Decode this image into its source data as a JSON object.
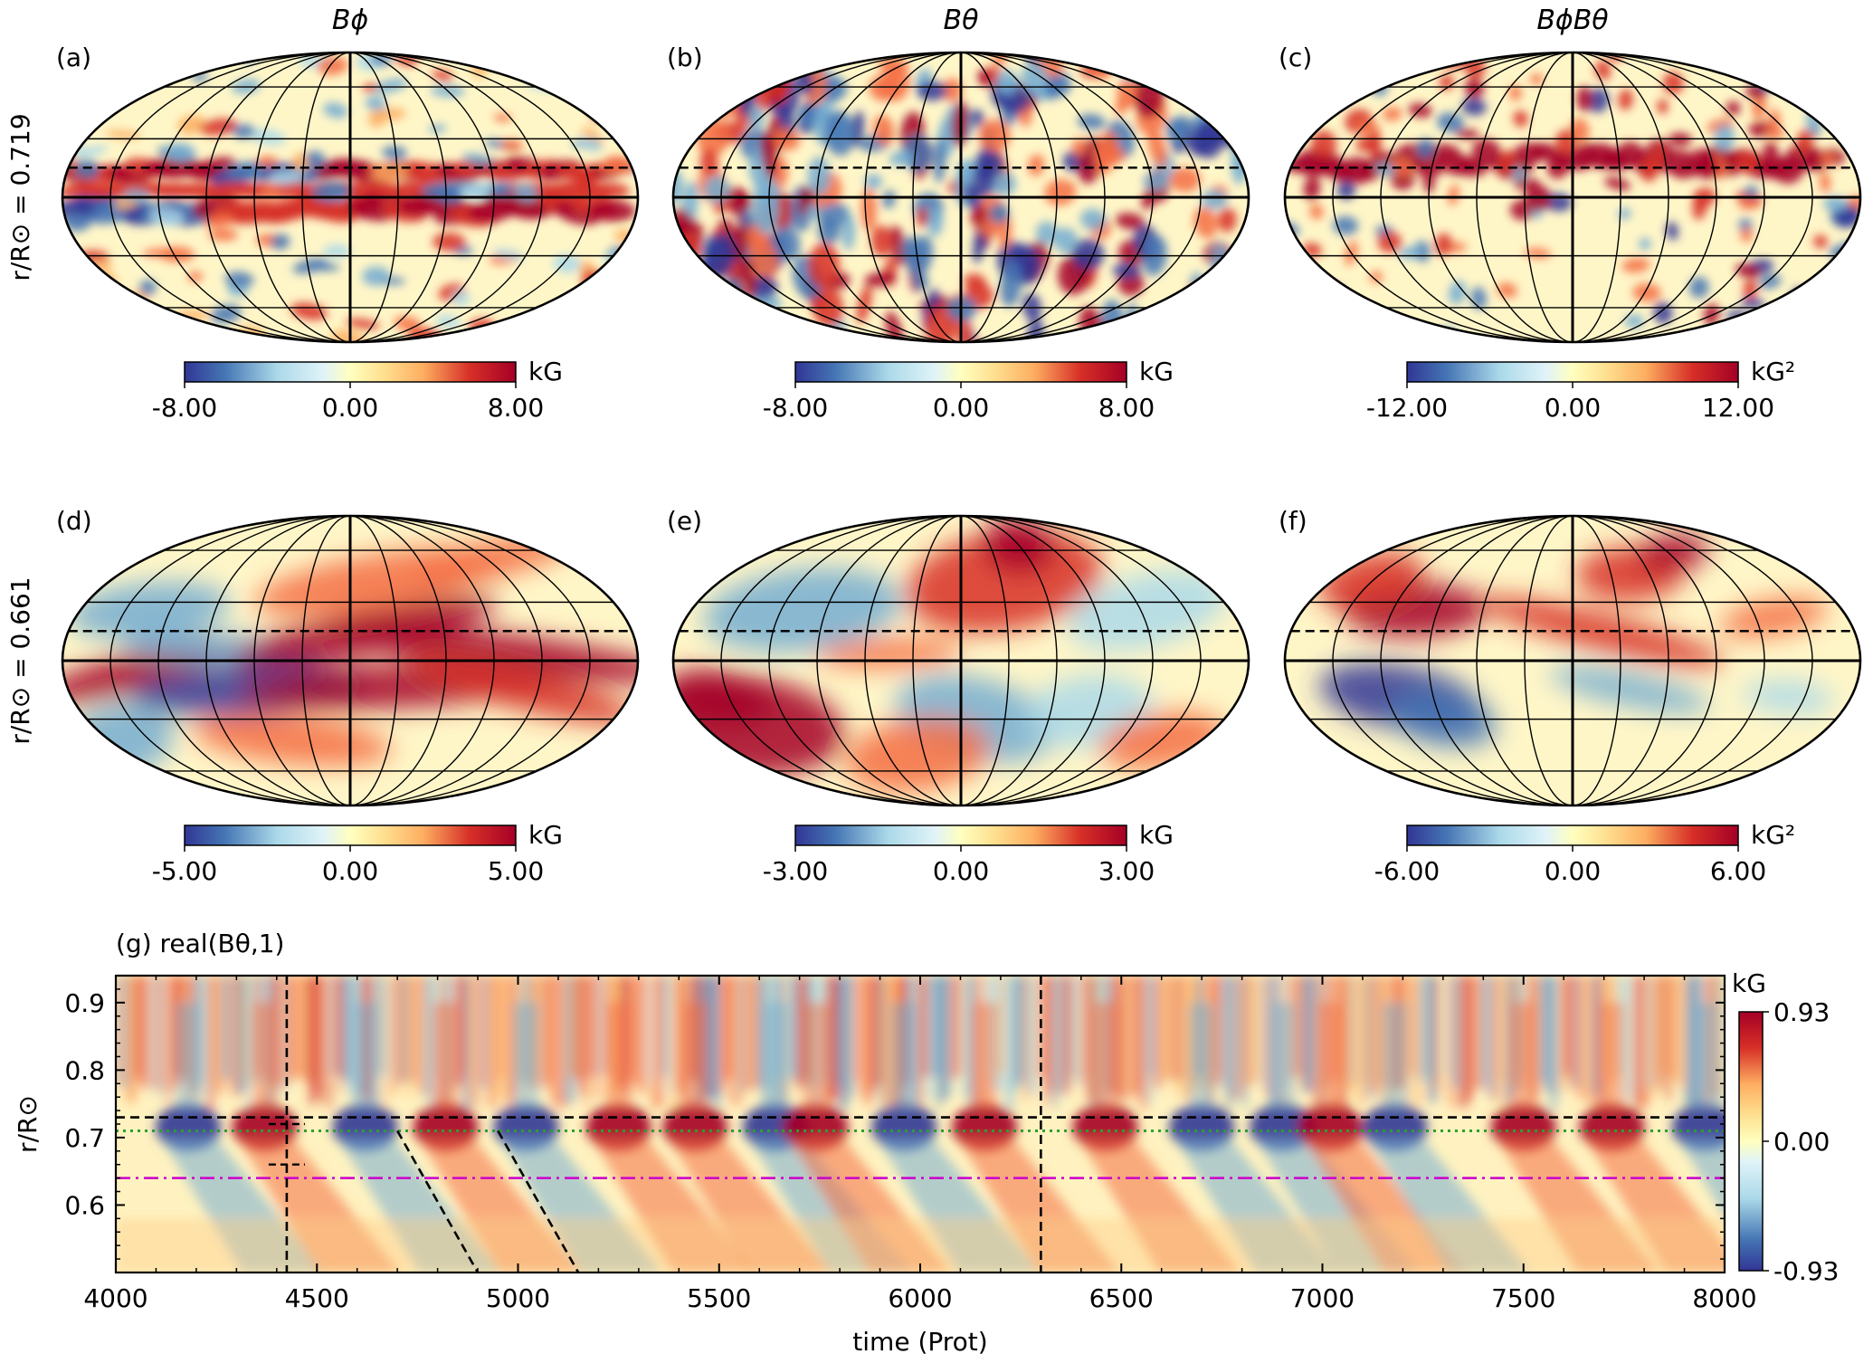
{
  "figure": {
    "column_titles": [
      "Bϕ",
      "Bθ",
      "BϕBθ"
    ],
    "row_labels": [
      "r/R⊙ = 0.719",
      "r/R⊙ = 0.661"
    ]
  },
  "chart_data": [
    {
      "panel": "(a)",
      "type": "heatmap",
      "projection": "mollweide",
      "column_title": "Bϕ",
      "row_label": "r/R⊙ = 0.719",
      "colorbar": {
        "min": -8.0,
        "max": 8.0,
        "ticks": [
          "-8.00",
          "0.00",
          "8.00"
        ],
        "unit": "kG"
      },
      "dominant_features": "strong equatorial toroidal band; positive below equator, mixed above"
    },
    {
      "panel": "(b)",
      "type": "heatmap",
      "projection": "mollweide",
      "column_title": "Bθ",
      "row_label": "r/R⊙ = 0.719",
      "colorbar": {
        "min": -8.0,
        "max": 8.0,
        "ticks": [
          "-8.00",
          "0.00",
          "8.00"
        ],
        "unit": "kG"
      },
      "dominant_features": "small-scale mixed-sign structures"
    },
    {
      "panel": "(c)",
      "type": "heatmap",
      "projection": "mollweide",
      "column_title": "BϕBθ",
      "row_label": "r/R⊙ = 0.719",
      "colorbar": {
        "min": -12.0,
        "max": 12.0,
        "ticks": [
          "-12.00",
          "0.00",
          "12.00"
        ],
        "unit": "kG²"
      },
      "dominant_features": "positive band at northern low latitudes, negative patches in south"
    },
    {
      "panel": "(d)",
      "type": "heatmap",
      "projection": "mollweide",
      "column_title": "Bϕ",
      "row_label": "r/R⊙ = 0.661",
      "colorbar": {
        "min": -5.0,
        "max": 5.0,
        "ticks": [
          "-5.00",
          "0.00",
          "5.00"
        ],
        "unit": "kG"
      },
      "dominant_features": "large-scale tilted toroidal bands"
    },
    {
      "panel": "(e)",
      "type": "heatmap",
      "projection": "mollweide",
      "column_title": "Bθ",
      "row_label": "r/R⊙ = 0.661",
      "colorbar": {
        "min": -3.0,
        "max": 3.0,
        "ticks": [
          "-3.00",
          "0.00",
          "3.00"
        ],
        "unit": "kG"
      },
      "dominant_features": "positive north-center, negative west-north; positive south-west, negative south-center"
    },
    {
      "panel": "(f)",
      "type": "heatmap",
      "projection": "mollweide",
      "column_title": "BϕBθ",
      "row_label": "r/R⊙ = 0.661",
      "colorbar": {
        "min": -6.0,
        "max": 6.0,
        "ticks": [
          "-6.00",
          "0.00",
          "6.00"
        ],
        "unit": "kG²"
      },
      "dominant_features": "positive in north, negative patch in south-west"
    },
    {
      "panel": "(g)",
      "type": "heatmap",
      "title": "(g) real(Bθ,1)",
      "xlabel": "time (Prot)",
      "ylabel": "r/R⊙",
      "xlim": [
        4000,
        8000
      ],
      "ylim": [
        0.5,
        0.94
      ],
      "xticks": [
        4000,
        4500,
        5000,
        5500,
        6000,
        6500,
        7000,
        7500,
        8000
      ],
      "yticks": [
        0.6,
        0.7,
        0.8,
        0.9
      ],
      "colorbar": {
        "min": -0.93,
        "max": 0.93,
        "ticks": [
          "0.93",
          "0.00",
          "-0.93"
        ],
        "unit": "kG"
      },
      "reference_lines": [
        {
          "kind": "horizontal",
          "style": "dashed",
          "color": "#000000",
          "y": 0.73
        },
        {
          "kind": "horizontal",
          "style": "dotted",
          "color": "#2ca02c",
          "y": 0.71
        },
        {
          "kind": "horizontal",
          "style": "dash-dot",
          "color": "#cc00cc",
          "y": 0.64
        },
        {
          "kind": "vertical",
          "style": "dashed",
          "color": "#000000",
          "x": 4425
        },
        {
          "kind": "vertical",
          "style": "dashed",
          "color": "#000000",
          "x": 6300
        },
        {
          "kind": "slanted",
          "style": "dashed",
          "color": "#000000",
          "from": [
            4700,
            0.71
          ],
          "to": [
            4900,
            0.5
          ]
        },
        {
          "kind": "slanted",
          "style": "dashed",
          "color": "#000000",
          "from": [
            4950,
            0.71
          ],
          "to": [
            5150,
            0.5
          ]
        }
      ],
      "cycle_polarity_sequence": [
        {
          "t": 4180,
          "sign": -1
        },
        {
          "t": 4370,
          "sign": 1
        },
        {
          "t": 4620,
          "sign": -1
        },
        {
          "t": 4820,
          "sign": 1
        },
        {
          "t": 5020,
          "sign": -1
        },
        {
          "t": 5250,
          "sign": 1
        },
        {
          "t": 5440,
          "sign": 1
        },
        {
          "t": 5640,
          "sign": -1
        },
        {
          "t": 5740,
          "sign": 1
        },
        {
          "t": 5960,
          "sign": -1
        },
        {
          "t": 6160,
          "sign": 1
        },
        {
          "t": 6460,
          "sign": 1
        },
        {
          "t": 6700,
          "sign": -1
        },
        {
          "t": 6900,
          "sign": -1
        },
        {
          "t": 7020,
          "sign": 1
        },
        {
          "t": 7180,
          "sign": -1
        },
        {
          "t": 7500,
          "sign": 1
        },
        {
          "t": 7720,
          "sign": 1
        },
        {
          "t": 7950,
          "sign": -1
        }
      ]
    }
  ]
}
